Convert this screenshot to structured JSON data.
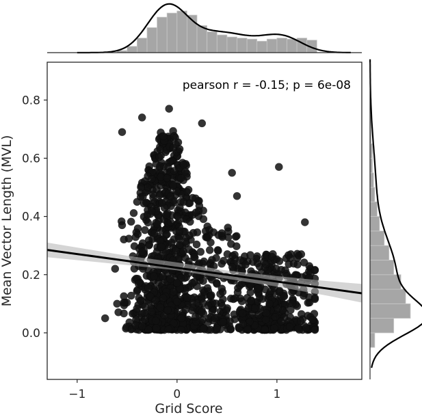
{
  "chart_data": {
    "type": "scatter",
    "title": "",
    "xlabel": "Grid Score",
    "ylabel": "Mean Vector Length (MVL)",
    "xlim": [
      -1.3,
      1.85
    ],
    "ylim": [
      -0.16,
      0.93
    ],
    "xticks": [
      -1,
      0,
      1
    ],
    "xtick_labels": [
      "−1",
      "0",
      "1"
    ],
    "yticks": [
      0.0,
      0.2,
      0.4,
      0.6,
      0.8
    ],
    "ytick_labels": [
      "0.0",
      "0.2",
      "0.4",
      "0.6",
      "0.8"
    ],
    "grid": false,
    "annotation": "pearson r = -0.15; p = 6e-08",
    "pearson_r": -0.15,
    "p_value": 6e-08,
    "n_points_approx": 1300,
    "regression_line": {
      "x": [
        -1.3,
        1.85
      ],
      "y": [
        0.285,
        0.136
      ]
    },
    "confidence_band": {
      "x": [
        -1.3,
        -0.5,
        0.0,
        0.5,
        1.0,
        1.5,
        1.85
      ],
      "lower": [
        0.26,
        0.233,
        0.215,
        0.186,
        0.159,
        0.128,
        0.104
      ],
      "upper": [
        0.31,
        0.265,
        0.242,
        0.214,
        0.195,
        0.178,
        0.168
      ]
    },
    "sample_points": [
      {
        "x": -0.08,
        "y": 0.77
      },
      {
        "x": -0.55,
        "y": 0.69
      },
      {
        "x": -0.55,
        "y": 0.37
      },
      {
        "x": -0.72,
        "y": 0.05
      },
      {
        "x": -0.62,
        "y": 0.22
      },
      {
        "x": 1.02,
        "y": 0.57
      },
      {
        "x": 1.38,
        "y": 0.01
      },
      {
        "x": 1.28,
        "y": 0.38
      },
      {
        "x": 0.6,
        "y": 0.47
      },
      {
        "x": 0.25,
        "y": 0.72
      },
      {
        "x": -0.35,
        "y": 0.74
      },
      {
        "x": 0.55,
        "y": 0.55
      }
    ],
    "marginal_x": {
      "bin_edges_start": -0.6,
      "bin_width": 0.1,
      "kde_peak_x": -0.1,
      "secondary_mode_x": 1.05,
      "counts": [
        2,
        6,
        14,
        24,
        34,
        38,
        40,
        36,
        26,
        20,
        17,
        15,
        14,
        13,
        11,
        13,
        14,
        13,
        14,
        12
      ]
    },
    "marginal_y": {
      "bin_edges_start": -0.05,
      "bin_width": 0.05,
      "kde_peak_y": 0.05,
      "counts": [
        4,
        20,
        34,
        30,
        26,
        20,
        16,
        12,
        8,
        6,
        4,
        3,
        2,
        2,
        1,
        1,
        1
      ]
    },
    "colors": {
      "points": "#111111",
      "line": "#000000",
      "band": "#b3b3b3",
      "hist": "#a6a6a6",
      "kde": "#000000"
    }
  }
}
